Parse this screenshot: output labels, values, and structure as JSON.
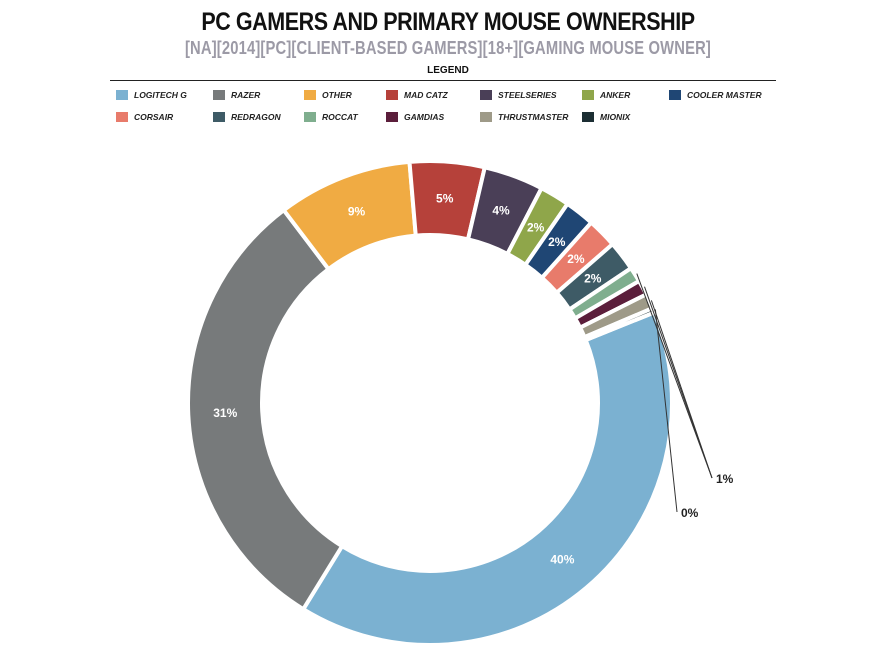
{
  "chart_data": {
    "type": "pie",
    "donut": true,
    "title": "PC GAMERS AND PRIMARY MOUSE OWNERSHIP",
    "subtitle": "[NA][2014][PC][CLIENT-BASED GAMERS][18+][GAMING MOUSE OWNER]",
    "legend_title": "LEGEND",
    "legend_placement": "top",
    "slices": [
      {
        "name": "LOGITECH G",
        "value": 40,
        "label": "40%",
        "color": "#7bb1d1"
      },
      {
        "name": "RAZER",
        "value": 31,
        "label": "31%",
        "color": "#777a7b"
      },
      {
        "name": "OTHER",
        "value": 9,
        "label": "9%",
        "color": "#f0ab43"
      },
      {
        "name": "MAD CATZ",
        "value": 5,
        "label": "5%",
        "color": "#b6413a"
      },
      {
        "name": "STEELSERIES",
        "value": 4,
        "label": "4%",
        "color": "#4a3f57"
      },
      {
        "name": "ANKER",
        "value": 2,
        "label": "2%",
        "color": "#8fa64a"
      },
      {
        "name": "COOLER MASTER",
        "value": 2,
        "label": "2%",
        "color": "#1f4674"
      },
      {
        "name": "CORSAIR",
        "value": 2,
        "label": "2%",
        "color": "#e87b6b"
      },
      {
        "name": "REDRAGON",
        "value": 2,
        "label": "2%",
        "color": "#3e5b66"
      },
      {
        "name": "ROCCAT",
        "value": 1,
        "label": "",
        "color": "#7fae8e"
      },
      {
        "name": "GAMDIAS",
        "value": 1,
        "label": "",
        "color": "#5b1e3b"
      },
      {
        "name": "THRUSTMASTER",
        "value": 1,
        "label": "",
        "color": "#9e9a88"
      },
      {
        "name": "MIONIX",
        "value": 0.3,
        "label": "",
        "color": "#1c2e33"
      }
    ],
    "callouts": [
      {
        "label": "1%",
        "targets": [
          "ROCCAT",
          "GAMDIAS",
          "THRUSTMASTER"
        ]
      },
      {
        "label": "0%",
        "targets": [
          "MIONIX"
        ]
      }
    ]
  }
}
